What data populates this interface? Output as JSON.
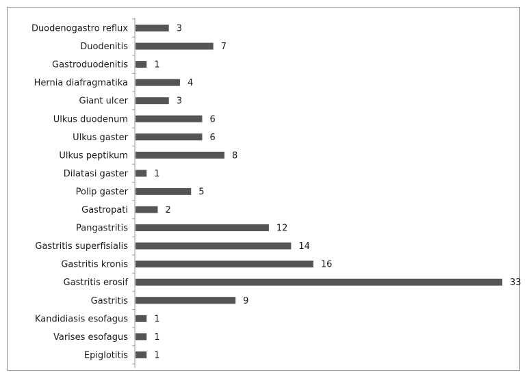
{
  "chart_data": {
    "type": "bar",
    "orientation": "horizontal",
    "title": "",
    "xlabel": "",
    "ylabel": "",
    "grid": false,
    "legend": "none",
    "xlim": [
      0,
      33
    ],
    "bar_color": "#555555",
    "categories": [
      "Duodenogastro reflux",
      "Duodenitis",
      "Gastroduodenitis",
      "Hernia diafragmatika",
      "Giant ulcer",
      "Ulkus duodenum",
      "Ulkus gaster",
      "Ulkus peptikum",
      "Dilatasi gaster",
      "Polip gaster",
      "Gastropati",
      "Pangastritis",
      "Gastritis superfisialis",
      "Gastritis kronis",
      "Gastritis erosif",
      "Gastritis",
      "Kandidiasis esofagus",
      "Varises esofagus",
      "Epiglotitis"
    ],
    "values": [
      3,
      7,
      1,
      4,
      3,
      6,
      6,
      8,
      1,
      5,
      2,
      12,
      14,
      16,
      33,
      9,
      1,
      1,
      1
    ]
  }
}
